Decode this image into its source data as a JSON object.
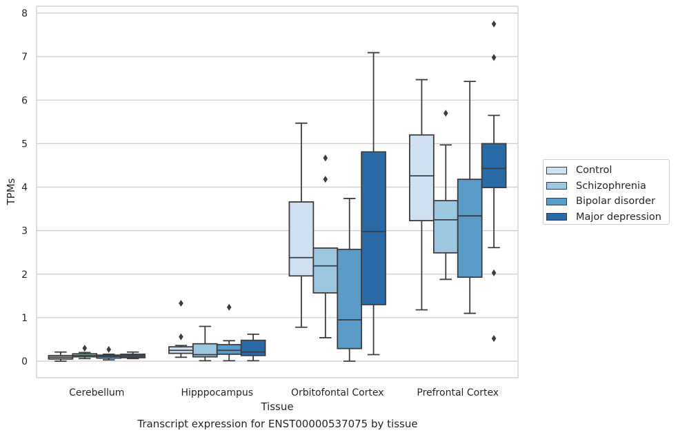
{
  "chart_data": {
    "type": "boxplot",
    "xlabel": "Tissue",
    "ylabel": "TPMs",
    "caption": "Transcript expression for ENST00000537075 by tissue",
    "categories": [
      "Cerebellum",
      "Hipppocampus",
      "Orbitofontal Cortex",
      "Prefrontal Cortex"
    ],
    "ylim": [
      -0.38,
      8.1
    ],
    "yticks": [
      "0",
      "1",
      "2",
      "3",
      "4",
      "5",
      "6",
      "7",
      "8"
    ],
    "grid": true,
    "legend_position": "right",
    "series": [
      {
        "name": "Control",
        "color": "#cfe0f1",
        "boxes": [
          {
            "whislo": 0.0,
            "q1": 0.05,
            "med": 0.09,
            "q3": 0.13,
            "whishi": 0.21,
            "fliers": []
          },
          {
            "whislo": 0.09,
            "q1": 0.18,
            "med": 0.25,
            "q3": 0.33,
            "whishi": 0.36,
            "fliers": [
              0.56,
              1.33
            ]
          },
          {
            "whislo": 0.78,
            "q1": 1.96,
            "med": 2.38,
            "q3": 3.66,
            "whishi": 5.47,
            "fliers": []
          },
          {
            "whislo": 1.18,
            "q1": 3.23,
            "med": 4.26,
            "q3": 5.2,
            "whishi": 6.47,
            "fliers": []
          }
        ]
      },
      {
        "name": "Schizophrenia",
        "color": "#9dc6e0",
        "boxes": [
          {
            "whislo": 0.06,
            "q1": 0.1,
            "med": 0.13,
            "q3": 0.17,
            "whishi": 0.2,
            "fliers": [
              0.3
            ]
          },
          {
            "whislo": 0.01,
            "q1": 0.1,
            "med": 0.15,
            "q3": 0.4,
            "whishi": 0.8,
            "fliers": []
          },
          {
            "whislo": 0.54,
            "q1": 1.57,
            "med": 2.19,
            "q3": 2.6,
            "whishi": 2.6,
            "fliers": [
              4.18,
              4.67
            ]
          },
          {
            "whislo": 1.88,
            "q1": 2.49,
            "med": 3.25,
            "q3": 3.69,
            "whishi": 4.97,
            "fliers": [
              5.7
            ]
          }
        ]
      },
      {
        "name": "Bipolar disorder",
        "color": "#5b9bc8",
        "boxes": [
          {
            "whislo": 0.03,
            "q1": 0.07,
            "med": 0.11,
            "q3": 0.14,
            "whishi": 0.16,
            "fliers": [
              0.27
            ]
          },
          {
            "whislo": 0.01,
            "q1": 0.16,
            "med": 0.25,
            "q3": 0.38,
            "whishi": 0.47,
            "fliers": [
              1.24
            ]
          },
          {
            "whislo": 0.0,
            "q1": 0.29,
            "med": 0.95,
            "q3": 2.57,
            "whishi": 3.74,
            "fliers": []
          },
          {
            "whislo": 1.1,
            "q1": 1.93,
            "med": 3.34,
            "q3": 4.18,
            "whishi": 6.43,
            "fliers": []
          }
        ]
      },
      {
        "name": "Major depression",
        "color": "#2a6aa7",
        "boxes": [
          {
            "whislo": 0.06,
            "q1": 0.08,
            "med": 0.12,
            "q3": 0.16,
            "whishi": 0.21,
            "fliers": []
          },
          {
            "whislo": 0.01,
            "q1": 0.13,
            "med": 0.21,
            "q3": 0.48,
            "whishi": 0.62,
            "fliers": []
          },
          {
            "whislo": 0.15,
            "q1": 1.3,
            "med": 2.98,
            "q3": 4.81,
            "whishi": 7.09,
            "fliers": []
          },
          {
            "whislo": 2.61,
            "q1": 3.99,
            "med": 4.43,
            "q3": 5.0,
            "whishi": 5.65,
            "fliers": [
              0.52,
              2.03,
              6.98,
              7.75
            ]
          }
        ]
      }
    ]
  }
}
